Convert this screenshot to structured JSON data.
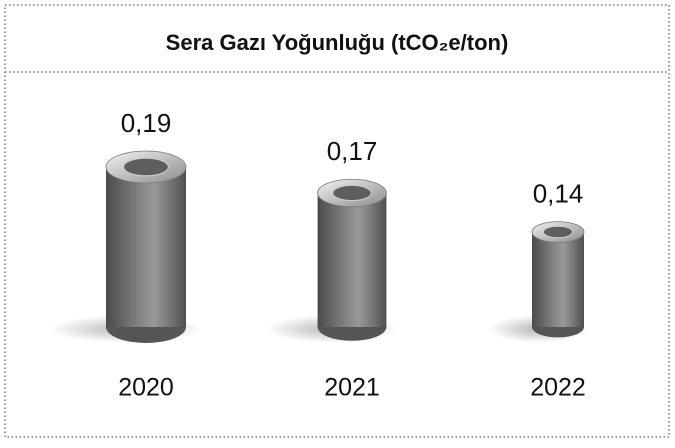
{
  "chart_data": {
    "type": "bar",
    "title": "Sera Gazı Yoğunluğu (tCO₂e/ton)",
    "categories": [
      "2020",
      "2021",
      "2022"
    ],
    "values": [
      0.19,
      0.17,
      0.14
    ],
    "value_labels": [
      "0,19",
      "0,17",
      "0,14"
    ],
    "color": "#7a7a7a"
  }
}
